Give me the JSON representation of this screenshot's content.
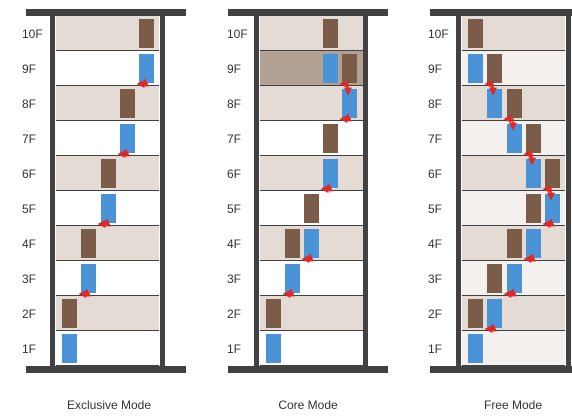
{
  "floors": [
    "10F",
    "9F",
    "8F",
    "7F",
    "6F",
    "5F",
    "4F",
    "3F",
    "2F",
    "1F"
  ],
  "colors": {
    "structure": "#414141",
    "floor_band": "#e5dbd5",
    "floor_band_dark": "#b3a193",
    "floor_white": "#ffffff",
    "floor_light": "#f4f0ee",
    "car_brown": "#7a5c48",
    "car_blue": "#4a93d6",
    "arrow": "#e02828"
  },
  "modes": [
    {
      "id": "exclusive",
      "label": "Exclusive Mode"
    },
    {
      "id": "core",
      "label": "Core Mode"
    },
    {
      "id": "free",
      "label": "Free Mode"
    }
  ]
}
